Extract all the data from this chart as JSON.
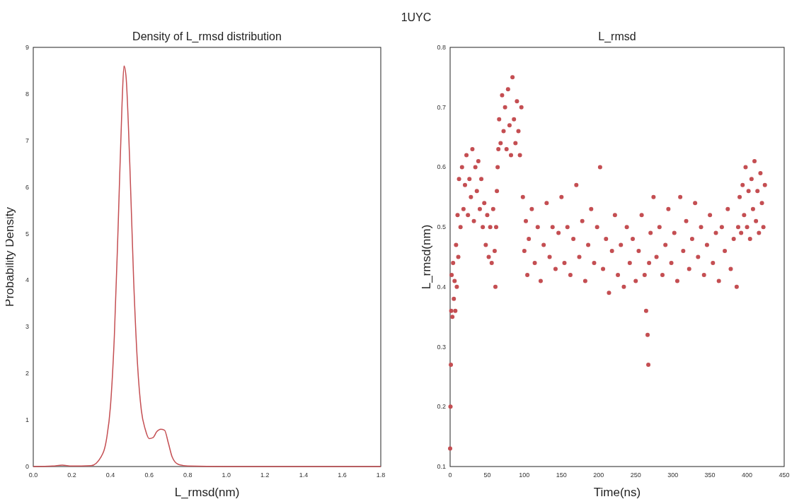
{
  "chart_data": [
    {
      "type": "line",
      "title": "Density of L_rmsd distribution",
      "xlabel": "L_rmsd(nm)",
      "ylabel": "Probability Density",
      "annotations": [
        "1UYC"
      ],
      "xlim": [
        0,
        1.8
      ],
      "xticks": [
        {
          "value": 0,
          "label": "0.0"
        },
        0.2,
        0.4,
        0.6,
        0.8,
        {
          "value": 1,
          "label": "1.0"
        },
        1.2,
        1.4,
        1.6,
        1.8
      ],
      "ylim": [
        0,
        9
      ],
      "yticks": [
        0,
        1,
        2,
        3,
        4,
        5,
        6,
        7,
        8,
        9
      ],
      "series": [
        {
          "color": "#c44e52",
          "x": [
            0,
            0.1,
            0.15,
            0.2,
            0.3,
            0.35,
            0.38,
            0.4,
            0.42,
            0.44,
            0.46,
            0.47,
            0.48,
            0.5,
            0.52,
            0.54,
            0.56,
            0.58,
            0.6,
            0.62,
            0.64,
            0.66,
            0.68,
            0.7,
            0.72,
            0.75,
            0.8,
            1.0,
            1.8
          ],
          "values": [
            0,
            0.01,
            0.03,
            0.01,
            0.02,
            0.2,
            0.6,
            1.3,
            2.8,
            5.2,
            7.8,
            8.6,
            8.4,
            6.5,
            4.0,
            2.2,
            1.2,
            0.8,
            0.6,
            0.62,
            0.75,
            0.8,
            0.78,
            0.5,
            0.2,
            0.05,
            0.01,
            0,
            0
          ]
        }
      ]
    },
    {
      "type": "scatter",
      "title": "L_rmsd",
      "xlabel": "Time(ns)",
      "ylabel": "L_rmsd(nm)",
      "marker": "circle",
      "xlim": [
        0,
        450
      ],
      "xticks": [
        0,
        50,
        100,
        150,
        200,
        250,
        300,
        350,
        400,
        450
      ],
      "ylim": [
        0.1,
        0.8
      ],
      "yticks": [
        0.1,
        0.2,
        0.3,
        0.4,
        0.5,
        0.6,
        0.7,
        0.8
      ],
      "series": [
        {
          "color": "#c44e52",
          "x": [
            0,
            0.5,
            1,
            1.5,
            2,
            3,
            4,
            5,
            6,
            7,
            8,
            9,
            10,
            11,
            12,
            14,
            16,
            18,
            20,
            22,
            24,
            26,
            28,
            30,
            32,
            34,
            36,
            38,
            40,
            42,
            44,
            46,
            48,
            50,
            52,
            54,
            56,
            58,
            60,
            61,
            62,
            63,
            64,
            65,
            66,
            68,
            70,
            72,
            74,
            76,
            78,
            80,
            82,
            84,
            86,
            88,
            90,
            92,
            94,
            96,
            98,
            100,
            102,
            104,
            106,
            110,
            114,
            118,
            122,
            126,
            130,
            134,
            138,
            142,
            146,
            150,
            154,
            158,
            162,
            166,
            170,
            174,
            178,
            182,
            186,
            190,
            194,
            198,
            202,
            206,
            210,
            214,
            218,
            222,
            226,
            230,
            234,
            238,
            242,
            246,
            250,
            254,
            258,
            262,
            264,
            266,
            267,
            268,
            270,
            274,
            278,
            282,
            286,
            290,
            294,
            298,
            302,
            306,
            310,
            314,
            318,
            322,
            326,
            330,
            334,
            338,
            342,
            346,
            350,
            354,
            358,
            362,
            366,
            370,
            374,
            378,
            382,
            386,
            388,
            390,
            392,
            394,
            396,
            398,
            400,
            402,
            404,
            406,
            408,
            410,
            412,
            414,
            416,
            418,
            420,
            422,
            424
          ],
          "values": [
            0.13,
            0.2,
            0.27,
            0.36,
            0.42,
            0.35,
            0.44,
            0.38,
            0.41,
            0.36,
            0.47,
            0.4,
            0.52,
            0.45,
            0.58,
            0.5,
            0.6,
            0.53,
            0.57,
            0.62,
            0.52,
            0.58,
            0.55,
            0.63,
            0.51,
            0.6,
            0.56,
            0.61,
            0.53,
            0.58,
            0.5,
            0.54,
            0.47,
            0.52,
            0.45,
            0.5,
            0.44,
            0.53,
            0.46,
            0.4,
            0.5,
            0.56,
            0.6,
            0.63,
            0.68,
            0.64,
            0.72,
            0.66,
            0.7,
            0.63,
            0.73,
            0.67,
            0.62,
            0.75,
            0.68,
            0.64,
            0.71,
            0.66,
            0.62,
            0.7,
            0.55,
            0.46,
            0.51,
            0.42,
            0.48,
            0.53,
            0.44,
            0.5,
            0.41,
            0.47,
            0.54,
            0.45,
            0.5,
            0.43,
            0.49,
            0.55,
            0.44,
            0.5,
            0.42,
            0.48,
            0.57,
            0.45,
            0.51,
            0.41,
            0.47,
            0.53,
            0.44,
            0.5,
            0.6,
            0.43,
            0.48,
            0.39,
            0.46,
            0.52,
            0.42,
            0.47,
            0.4,
            0.5,
            0.44,
            0.48,
            0.41,
            0.46,
            0.52,
            0.42,
            0.36,
            0.32,
            0.27,
            0.44,
            0.49,
            0.55,
            0.45,
            0.5,
            0.42,
            0.47,
            0.53,
            0.44,
            0.49,
            0.41,
            0.55,
            0.46,
            0.51,
            0.43,
            0.48,
            0.54,
            0.45,
            0.5,
            0.42,
            0.47,
            0.52,
            0.44,
            0.49,
            0.41,
            0.5,
            0.46,
            0.53,
            0.43,
            0.48,
            0.4,
            0.5,
            0.55,
            0.49,
            0.57,
            0.52,
            0.6,
            0.5,
            0.56,
            0.48,
            0.58,
            0.53,
            0.61,
            0.51,
            0.56,
            0.49,
            0.59,
            0.54,
            0.5,
            0.57
          ]
        }
      ]
    }
  ]
}
